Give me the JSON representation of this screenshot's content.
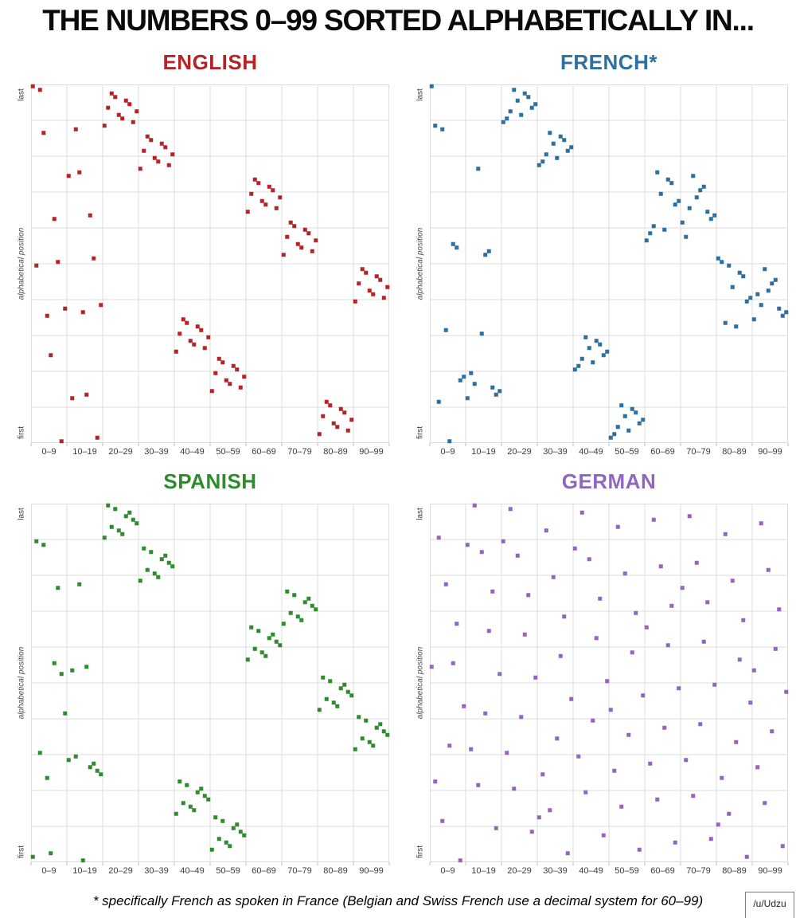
{
  "page": {
    "title": "THE NUMBERS 0–99 SORTED ALPHABETICALLY IN...",
    "footnote": "* specifically French as spoken in France (Belgian and Swiss French use a decimal system for 60–99)",
    "credit": "/u/Udzu",
    "background": "#ffffff"
  },
  "axes": {
    "x_tick_labels": [
      "0–9",
      "10–19",
      "20–29",
      "30–39",
      "40–49",
      "50–59",
      "60–69",
      "70–79",
      "80–89",
      "90–99"
    ],
    "y_axis_label": "alphabetical position",
    "y_bottom_label": "first",
    "y_top_label": "last",
    "grid_color": "#dcdcdc",
    "tick_color": "#bbbbbb",
    "x_range": [
      0,
      99
    ],
    "y_range": [
      1,
      100
    ],
    "grid": "10x10 cells"
  },
  "chart_data": [
    {
      "type": "scatter",
      "title": "ENGLISH",
      "color": "#b42328",
      "marker": "square",
      "x_meaning": "number value 0–99 (array index)",
      "y_meaning": "alphabetical position of the number word (1=first, 100=last)",
      "positions": [
        100,
        50,
        99,
        87,
        36,
        25,
        63,
        51,
        1,
        38,
        75,
        13,
        88,
        76,
        37,
        14,
        64,
        52,
        2,
        39,
        89,
        94,
        98,
        97,
        92,
        91,
        96,
        95,
        90,
        93,
        77,
        82,
        86,
        85,
        80,
        79,
        84,
        83,
        78,
        81,
        26,
        31,
        35,
        34,
        29,
        28,
        33,
        32,
        27,
        30,
        15,
        20,
        24,
        23,
        18,
        17,
        22,
        21,
        16,
        19,
        65,
        70,
        74,
        73,
        68,
        67,
        72,
        71,
        66,
        69,
        53,
        58,
        62,
        61,
        56,
        55,
        60,
        59,
        54,
        57,
        3,
        8,
        12,
        11,
        6,
        5,
        10,
        9,
        4,
        7,
        40,
        45,
        49,
        48,
        43,
        42,
        47,
        46,
        41,
        44
      ]
    },
    {
      "type": "scatter",
      "title": "FRENCH*",
      "color": "#2d6f9e",
      "marker": "square",
      "x_meaning": "number value 0–99 (array index)",
      "y_meaning": "alphabetical position of the number word (1=first, 100=last)",
      "positions": [
        100,
        89,
        12,
        88,
        32,
        1,
        56,
        55,
        18,
        19,
        13,
        20,
        17,
        77,
        31,
        53,
        54,
        16,
        14,
        15,
        90,
        91,
        93,
        99,
        96,
        92,
        98,
        97,
        94,
        95,
        78,
        79,
        81,
        87,
        84,
        80,
        86,
        85,
        82,
        83,
        21,
        22,
        24,
        30,
        27,
        23,
        29,
        28,
        25,
        26,
        2,
        3,
        5,
        11,
        8,
        4,
        10,
        9,
        6,
        7,
        57,
        59,
        61,
        76,
        70,
        60,
        74,
        73,
        67,
        68,
        62,
        58,
        66,
        75,
        69,
        71,
        72,
        65,
        63,
        64,
        52,
        51,
        34,
        50,
        44,
        33,
        48,
        47,
        40,
        41,
        35,
        42,
        39,
        49,
        43,
        45,
        46,
        38,
        36,
        37
      ]
    },
    {
      "type": "scatter",
      "title": "SPANISH",
      "color": "#2e8b2e",
      "marker": "square",
      "x_meaning": "number value 0–99 (array index)",
      "y_meaning": "alphabetical position of the number word (1=first, 100=last)",
      "positions": [
        2,
        90,
        31,
        89,
        24,
        3,
        56,
        77,
        53,
        42,
        29,
        54,
        30,
        78,
        1,
        55,
        27,
        28,
        26,
        25,
        91,
        100,
        94,
        99,
        93,
        92,
        97,
        98,
        96,
        95,
        79,
        88,
        82,
        87,
        81,
        80,
        85,
        86,
        84,
        83,
        14,
        23,
        17,
        22,
        16,
        15,
        20,
        21,
        19,
        18,
        4,
        13,
        7,
        12,
        6,
        5,
        10,
        11,
        9,
        8,
        57,
        66,
        60,
        65,
        59,
        58,
        63,
        64,
        62,
        61,
        67,
        76,
        70,
        75,
        69,
        68,
        73,
        74,
        72,
        71,
        43,
        52,
        46,
        51,
        45,
        44,
        49,
        50,
        48,
        47,
        32,
        41,
        35,
        40,
        34,
        33,
        38,
        39,
        37,
        36
      ]
    },
    {
      "type": "scatter",
      "title": "GERMAN",
      "color": "#9066be",
      "marker": "square",
      "x_meaning": "number value 0–99 (array index)",
      "y_meaning": "alphabetical position of the number word (1=first, 100=last)",
      "positions": [
        55,
        23,
        91,
        12,
        78,
        33,
        56,
        67,
        1,
        44,
        89,
        32,
        100,
        22,
        87,
        42,
        65,
        76,
        10,
        53,
        90,
        31,
        99,
        21,
        86,
        41,
        64,
        75,
        9,
        52,
        13,
        25,
        93,
        15,
        80,
        35,
        58,
        69,
        3,
        46,
        88,
        30,
        98,
        20,
        85,
        40,
        63,
        74,
        8,
        51,
        43,
        26,
        94,
        16,
        81,
        36,
        59,
        70,
        4,
        47,
        66,
        28,
        96,
        18,
        83,
        38,
        61,
        72,
        6,
        49,
        77,
        29,
        97,
        19,
        84,
        39,
        62,
        73,
        7,
        50,
        11,
        24,
        92,
        14,
        79,
        34,
        57,
        68,
        2,
        45,
        54,
        27,
        95,
        17,
        82,
        37,
        60,
        71,
        5,
        48
      ]
    }
  ]
}
